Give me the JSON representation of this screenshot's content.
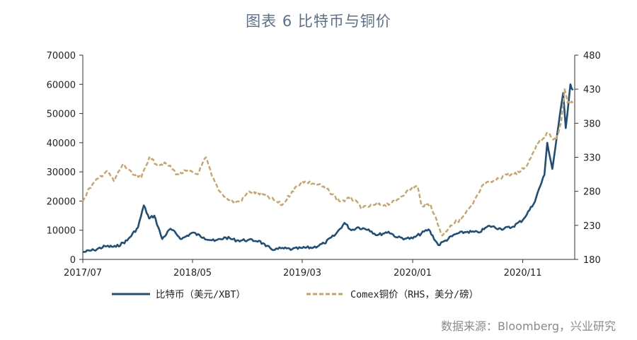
{
  "header": {
    "title": "图表 6 比特币与铜价"
  },
  "source": "数据来源：Bloomberg，兴业研究",
  "chart_data": {
    "type": "line",
    "title": "图表 6 比特币与铜价",
    "x_ticks": [
      "2017/07",
      "2018/05",
      "2019/03",
      "2020/01",
      "2020/11"
    ],
    "y_left": {
      "ylim": [
        0,
        70000
      ],
      "ticks": [
        "0",
        "10000",
        "20000",
        "30000",
        "40000",
        "50000",
        "60000",
        "70000"
      ]
    },
    "y_right": {
      "ylim": [
        180,
        480
      ],
      "ticks": [
        "180",
        "230",
        "280",
        "330",
        "380",
        "430",
        "480"
      ]
    },
    "colors": {
      "bitcoin": "#1f4e79",
      "copper": "#c9a46a"
    },
    "series": [
      {
        "name": "比特币（美元/XBT）",
        "axis": "left",
        "style": "solid",
        "points": [
          [
            "2017-07-01",
            2500
          ],
          [
            "2017-08-01",
            3200
          ],
          [
            "2017-09-01",
            4500
          ],
          [
            "2017-10-01",
            4300
          ],
          [
            "2017-11-01",
            6500
          ],
          [
            "2017-12-01",
            11000
          ],
          [
            "2017-12-17",
            18500
          ],
          [
            "2018-01-01",
            14000
          ],
          [
            "2018-01-15",
            15000
          ],
          [
            "2018-02-06",
            7000
          ],
          [
            "2018-03-01",
            10500
          ],
          [
            "2018-04-01",
            7000
          ],
          [
            "2018-05-01",
            9200
          ],
          [
            "2018-06-01",
            7500
          ],
          [
            "2018-07-01",
            6300
          ],
          [
            "2018-08-01",
            7500
          ],
          [
            "2018-09-01",
            6500
          ],
          [
            "2018-10-01",
            6600
          ],
          [
            "2018-11-01",
            6400
          ],
          [
            "2018-11-20",
            4500
          ],
          [
            "2018-12-15",
            3300
          ],
          [
            "2019-01-01",
            3800
          ],
          [
            "2019-02-01",
            3500
          ],
          [
            "2019-03-01",
            3900
          ],
          [
            "2019-04-01",
            4100
          ],
          [
            "2019-05-01",
            5500
          ],
          [
            "2019-06-01",
            8500
          ],
          [
            "2019-06-26",
            12500
          ],
          [
            "2019-07-15",
            10000
          ],
          [
            "2019-08-01",
            11000
          ],
          [
            "2019-09-01",
            10300
          ],
          [
            "2019-09-25",
            8300
          ],
          [
            "2019-10-26",
            9500
          ],
          [
            "2019-11-20",
            7500
          ],
          [
            "2019-12-15",
            7200
          ],
          [
            "2020-01-01",
            7200
          ],
          [
            "2020-02-14",
            10300
          ],
          [
            "2020-03-12",
            4900
          ],
          [
            "2020-04-01",
            6500
          ],
          [
            "2020-05-01",
            8800
          ],
          [
            "2020-06-01",
            9500
          ],
          [
            "2020-07-01",
            9200
          ],
          [
            "2020-08-01",
            11500
          ],
          [
            "2020-09-01",
            10500
          ],
          [
            "2020-10-01",
            11000
          ],
          [
            "2020-11-01",
            13500
          ],
          [
            "2020-12-01",
            19000
          ],
          [
            "2020-12-31",
            29000
          ],
          [
            "2021-01-08",
            40000
          ],
          [
            "2021-01-22",
            31000
          ],
          [
            "2021-02-08",
            46000
          ],
          [
            "2021-02-21",
            57000
          ],
          [
            "2021-02-28",
            45000
          ],
          [
            "2021-03-13",
            60000
          ],
          [
            "2021-03-20",
            58000
          ]
        ]
      },
      {
        "name": "Comex铜价（RHS，美分/磅）",
        "axis": "right",
        "style": "dashed",
        "points": [
          [
            "2017-07-01",
            265
          ],
          [
            "2017-07-20",
            285
          ],
          [
            "2017-08-15",
            300
          ],
          [
            "2017-09-05",
            310
          ],
          [
            "2017-09-25",
            295
          ],
          [
            "2017-10-20",
            320
          ],
          [
            "2017-11-15",
            305
          ],
          [
            "2017-12-10",
            300
          ],
          [
            "2018-01-01",
            330
          ],
          [
            "2018-01-20",
            320
          ],
          [
            "2018-02-20",
            320
          ],
          [
            "2018-03-20",
            305
          ],
          [
            "2018-04-15",
            310
          ],
          [
            "2018-05-15",
            305
          ],
          [
            "2018-06-07",
            330
          ],
          [
            "2018-06-25",
            300
          ],
          [
            "2018-07-15",
            280
          ],
          [
            "2018-08-15",
            265
          ],
          [
            "2018-09-10",
            265
          ],
          [
            "2018-10-05",
            280
          ],
          [
            "2018-11-15",
            275
          ],
          [
            "2018-12-20",
            265
          ],
          [
            "2019-01-05",
            260
          ],
          [
            "2019-02-01",
            280
          ],
          [
            "2019-03-01",
            295
          ],
          [
            "2019-04-15",
            290
          ],
          [
            "2019-05-15",
            280
          ],
          [
            "2019-06-15",
            265
          ],
          [
            "2019-07-15",
            270
          ],
          [
            "2019-08-15",
            255
          ],
          [
            "2019-09-15",
            260
          ],
          [
            "2019-10-15",
            260
          ],
          [
            "2019-11-15",
            265
          ],
          [
            "2019-12-15",
            280
          ],
          [
            "2020-01-14",
            288
          ],
          [
            "2020-01-25",
            260
          ],
          [
            "2020-02-20",
            260
          ],
          [
            "2020-03-23",
            215
          ],
          [
            "2020-04-15",
            230
          ],
          [
            "2020-05-15",
            240
          ],
          [
            "2020-06-15",
            260
          ],
          [
            "2020-07-15",
            290
          ],
          [
            "2020-08-15",
            295
          ],
          [
            "2020-09-15",
            305
          ],
          [
            "2020-10-15",
            305
          ],
          [
            "2020-11-15",
            320
          ],
          [
            "2020-12-10",
            350
          ],
          [
            "2021-01-10",
            365
          ],
          [
            "2021-02-01",
            355
          ],
          [
            "2021-02-15",
            380
          ],
          [
            "2021-02-25",
            430
          ],
          [
            "2021-03-05",
            410
          ],
          [
            "2021-03-20",
            410
          ]
        ]
      }
    ],
    "legend": [
      "比特币（美元/XBT）",
      "Comex铜价（RHS，美分/磅）"
    ],
    "legend_position": "bottom",
    "grid": false
  }
}
